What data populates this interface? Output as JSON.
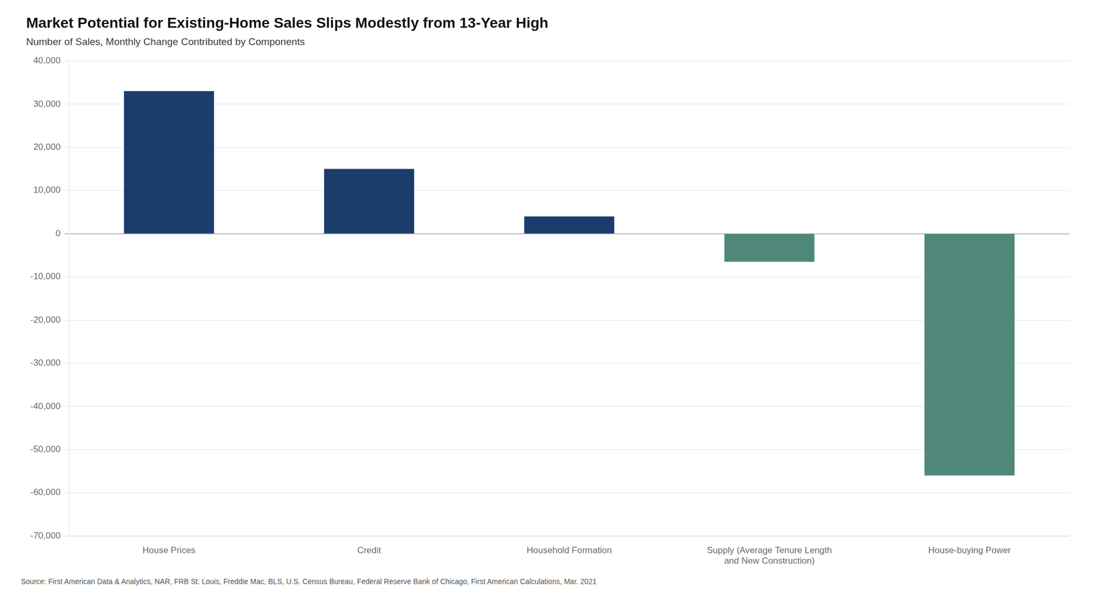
{
  "chart_data": {
    "type": "bar",
    "title": "Market Potential for Existing-Home Sales Slips Modestly from 13-Year High",
    "subtitle": "Number of Sales, Monthly Change Contributed by Components",
    "source": "Source: First American Data & Analytics, NAR, FRB St. Louis, Freddie Mac, BLS, U.S. Census Bureau, Federal Reserve Bank of Chicago, First American Calculations, Mar. 2021",
    "categories": [
      "House Prices",
      "Credit",
      "Household Formation",
      "Supply (Average Tenure Length\nand New Construction)",
      "House-buying Power"
    ],
    "values": [
      33000,
      15000,
      4000,
      -6500,
      -56000
    ],
    "colors": [
      "#1b3d6e",
      "#1b3d6e",
      "#1b3d6e",
      "#4f8878",
      "#4f8878"
    ],
    "ylim": [
      -70000,
      40000
    ],
    "yticks": [
      {
        "value": -70000,
        "label": "-70,000"
      },
      {
        "value": -60000,
        "label": "-60,000"
      },
      {
        "value": -50000,
        "label": "-50,000"
      },
      {
        "value": -40000,
        "label": "-40,000"
      },
      {
        "value": -30000,
        "label": "-30,000"
      },
      {
        "value": -20000,
        "label": "-20,000"
      },
      {
        "value": -10000,
        "label": "-10,000"
      },
      0,
      {
        "value": 10000,
        "label": "10,000"
      },
      {
        "value": 20000,
        "label": "20,000"
      },
      {
        "value": 30000,
        "label": "30,000"
      },
      {
        "value": 40000,
        "label": "40,000"
      }
    ],
    "grid": true
  }
}
